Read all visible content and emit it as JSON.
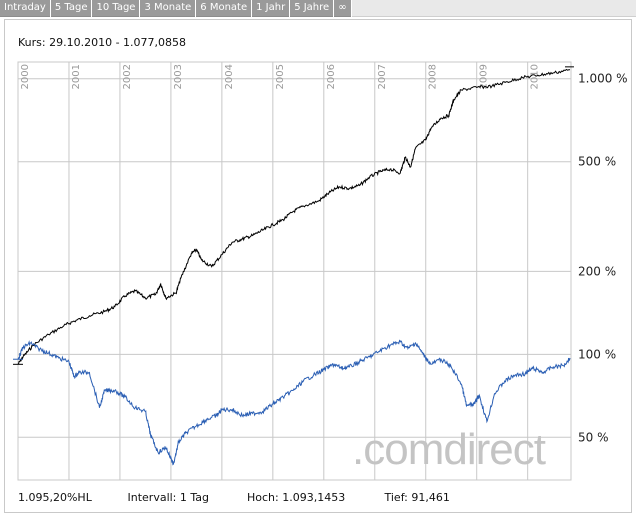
{
  "tabs": [
    "Intraday",
    "5 Tage",
    "10 Tage",
    "3 Monate",
    "6 Monate",
    "1 Jahr",
    "5 Jahre",
    "∞"
  ],
  "kurs_label": "Kurs: 29.10.2010 - 1.077,0858",
  "footer": {
    "change": "1.095,20%HL",
    "interval": "Intervall: 1 Tag",
    "high": "Hoch: 1.093,1453",
    "low": "Tief: 91,461"
  },
  "watermark": ".comdirect",
  "colors": {
    "series_black": "#000000",
    "series_blue": "#2b5fb4",
    "grid": "#c8c8c8"
  },
  "chart_data": {
    "type": "line",
    "y_scale": "log",
    "y_ticks": [
      {
        "value": 50,
        "label": "50 %"
      },
      {
        "value": 100,
        "label": "100 %"
      },
      {
        "value": 200,
        "label": "200 %"
      },
      {
        "value": 500,
        "label": "500 %"
      },
      {
        "value": 1000,
        "label": "1.000 %"
      }
    ],
    "x_ticks": [
      "2000",
      "2001",
      "2002",
      "2003",
      "2004",
      "2005",
      "2006",
      "2007",
      "2008",
      "2009",
      "2010"
    ],
    "xlim": [
      2000.0,
      2010.85
    ],
    "ylim": [
      35,
      1150
    ],
    "series": [
      {
        "color": "#000000",
        "points": [
          [
            2000.0,
            92
          ],
          [
            2000.1,
            98
          ],
          [
            2000.3,
            108
          ],
          [
            2000.6,
            118
          ],
          [
            2000.9,
            127
          ],
          [
            2001.1,
            132
          ],
          [
            2001.4,
            138
          ],
          [
            2001.7,
            143
          ],
          [
            2001.9,
            149
          ],
          [
            2002.1,
            163
          ],
          [
            2002.3,
            170
          ],
          [
            2002.5,
            160
          ],
          [
            2002.7,
            165
          ],
          [
            2002.8,
            180
          ],
          [
            2002.9,
            160
          ],
          [
            2003.1,
            167
          ],
          [
            2003.2,
            190
          ],
          [
            2003.4,
            232
          ],
          [
            2003.5,
            240
          ],
          [
            2003.6,
            220
          ],
          [
            2003.8,
            208
          ],
          [
            2004.0,
            230
          ],
          [
            2004.2,
            255
          ],
          [
            2004.4,
            262
          ],
          [
            2004.6,
            270
          ],
          [
            2004.8,
            282
          ],
          [
            2005.0,
            295
          ],
          [
            2005.2,
            308
          ],
          [
            2005.4,
            330
          ],
          [
            2005.6,
            345
          ],
          [
            2005.9,
            360
          ],
          [
            2006.1,
            385
          ],
          [
            2006.3,
            405
          ],
          [
            2006.5,
            400
          ],
          [
            2006.7,
            410
          ],
          [
            2006.9,
            440
          ],
          [
            2007.1,
            460
          ],
          [
            2007.3,
            470
          ],
          [
            2007.5,
            455
          ],
          [
            2007.6,
            520
          ],
          [
            2007.7,
            478
          ],
          [
            2007.8,
            560
          ],
          [
            2008.0,
            600
          ],
          [
            2008.1,
            660
          ],
          [
            2008.3,
            720
          ],
          [
            2008.45,
            735
          ],
          [
            2008.55,
            840
          ],
          [
            2008.7,
            910
          ],
          [
            2009.0,
            930
          ],
          [
            2009.3,
            940
          ],
          [
            2009.6,
            975
          ],
          [
            2009.9,
            1010
          ],
          [
            2010.2,
            1030
          ],
          [
            2010.5,
            1050
          ],
          [
            2010.83,
            1077
          ]
        ]
      },
      {
        "color": "#2b5fb4",
        "points": [
          [
            2000.0,
            96
          ],
          [
            2000.1,
            106
          ],
          [
            2000.25,
            110
          ],
          [
            2000.4,
            105
          ],
          [
            2000.6,
            101
          ],
          [
            2000.8,
            97
          ],
          [
            2001.0,
            94
          ],
          [
            2001.1,
            83
          ],
          [
            2001.2,
            86
          ],
          [
            2001.4,
            86
          ],
          [
            2001.6,
            64
          ],
          [
            2001.7,
            74
          ],
          [
            2001.9,
            74
          ],
          [
            2002.1,
            70
          ],
          [
            2002.3,
            64
          ],
          [
            2002.5,
            62
          ],
          [
            2002.6,
            51
          ],
          [
            2002.75,
            44
          ],
          [
            2002.9,
            46
          ],
          [
            2003.05,
            40
          ],
          [
            2003.15,
            48
          ],
          [
            2003.3,
            52
          ],
          [
            2003.5,
            55
          ],
          [
            2003.7,
            58
          ],
          [
            2003.9,
            60
          ],
          [
            2004.0,
            63
          ],
          [
            2004.2,
            63
          ],
          [
            2004.4,
            60
          ],
          [
            2004.6,
            61
          ],
          [
            2004.8,
            62
          ],
          [
            2005.0,
            66
          ],
          [
            2005.2,
            70
          ],
          [
            2005.4,
            74
          ],
          [
            2005.6,
            80
          ],
          [
            2005.8,
            84
          ],
          [
            2006.0,
            88
          ],
          [
            2006.2,
            92
          ],
          [
            2006.35,
            89
          ],
          [
            2006.5,
            90
          ],
          [
            2006.7,
            94
          ],
          [
            2006.9,
            98
          ],
          [
            2007.1,
            103
          ],
          [
            2007.3,
            108
          ],
          [
            2007.5,
            111
          ],
          [
            2007.65,
            105
          ],
          [
            2007.8,
            110
          ],
          [
            2007.95,
            100
          ],
          [
            2008.1,
            92
          ],
          [
            2008.3,
            96
          ],
          [
            2008.5,
            90
          ],
          [
            2008.7,
            78
          ],
          [
            2008.8,
            65
          ],
          [
            2008.95,
            66
          ],
          [
            2009.05,
            71
          ],
          [
            2009.2,
            57
          ],
          [
            2009.35,
            72
          ],
          [
            2009.55,
            80
          ],
          [
            2009.75,
            84
          ],
          [
            2009.95,
            85
          ],
          [
            2010.1,
            89
          ],
          [
            2010.3,
            86
          ],
          [
            2010.5,
            90
          ],
          [
            2010.7,
            91
          ],
          [
            2010.83,
            97
          ]
        ]
      }
    ]
  }
}
